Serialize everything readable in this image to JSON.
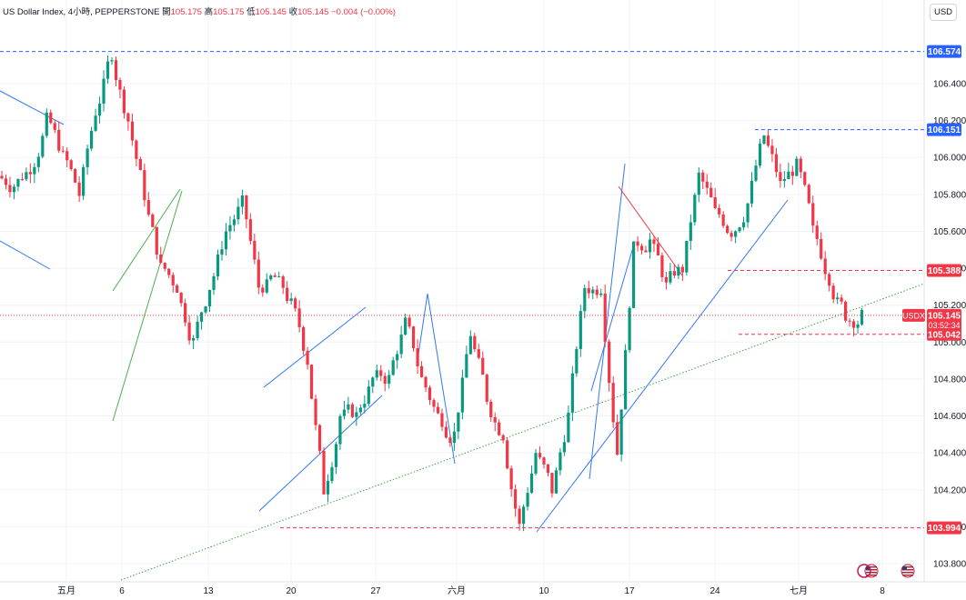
{
  "header": {
    "symbol": "US Dollar Index, 4小時, PEPPERSTONE",
    "open_label": "開",
    "open": "105.175",
    "high_label": "高",
    "high": "105.175",
    "low_label": "低",
    "low": "105.145",
    "close_label": "收",
    "close": "105.145",
    "change": "−0.004 (−0.00%)"
  },
  "currency_button": "USD",
  "y_axis": {
    "min": 103.7,
    "max": 106.7,
    "ticks": [
      "106.400",
      "106.200",
      "106.000",
      "105.800",
      "105.600",
      "105.400",
      "105.200",
      "105.000",
      "104.800",
      "104.600",
      "104.400",
      "104.200",
      "104.000",
      "103.800"
    ]
  },
  "x_axis": {
    "labels": [
      "五月",
      "6",
      "13",
      "20",
      "27",
      "六月",
      "10",
      "17",
      "24",
      "七月",
      "8"
    ]
  },
  "price_tags": {
    "high_line": "106.574",
    "resistance": "106.151",
    "support_red": "105.388",
    "current": "105.145",
    "countdown": "03:52:34",
    "symbol_badge": "USDX",
    "support_low": "105.042",
    "bottom": "103.994"
  },
  "colors": {
    "up": "#089981",
    "down": "#f23645",
    "blue": "#2962ff",
    "trend_blue": "#3179f5",
    "green_channel": "#4caf50"
  },
  "chart_data": {
    "type": "candlestick",
    "instrument": "US Dollar Index",
    "timeframe": "4小時",
    "source": "PEPPERSTONE",
    "key_levels": [
      106.574,
      106.151,
      105.388,
      105.145,
      105.042,
      103.994
    ],
    "ylim": [
      103.7,
      106.7
    ],
    "path_points": [
      [
        105.9,
        105.85
      ],
      [
        105.7,
        105.95
      ],
      [
        106.15,
        106.2
      ],
      [
        105.9,
        106.0
      ],
      [
        105.7,
        105.8
      ],
      [
        106.1,
        106.25
      ],
      [
        106.5,
        106.57
      ],
      [
        106.4,
        106.2
      ],
      [
        106.0,
        105.8
      ],
      [
        105.9,
        105.4
      ],
      [
        105.2,
        105.3
      ],
      [
        105.1,
        105.0
      ],
      [
        105.2,
        105.3
      ],
      [
        105.5,
        105.6
      ],
      [
        105.7,
        105.75
      ],
      [
        105.5,
        105.3
      ],
      [
        105.3,
        105.35
      ],
      [
        105.2,
        105.2
      ],
      [
        105.1,
        104.9
      ],
      [
        104.7,
        104.2
      ],
      [
        104.4,
        104.6
      ],
      [
        104.7,
        104.6
      ],
      [
        104.7,
        104.8
      ],
      [
        104.9,
        104.8
      ],
      [
        105.0,
        105.1
      ],
      [
        104.8,
        104.8
      ],
      [
        104.6,
        104.6
      ],
      [
        104.4,
        104.5
      ],
      [
        105.1,
        105.05
      ],
      [
        104.8,
        104.7
      ],
      [
        104.6,
        104.5
      ],
      [
        104.1,
        104.0
      ],
      [
        104.2,
        104.4
      ],
      [
        104.3,
        104.2
      ],
      [
        104.0,
        104.6
      ],
      [
        104.95,
        105.3
      ],
      [
        105.2,
        105.3
      ],
      [
        105.0,
        104.4
      ],
      [
        104.8,
        105.5
      ],
      [
        105.6,
        105.55
      ],
      [
        105.4,
        105.3
      ],
      [
        105.25,
        105.4
      ],
      [
        105.6,
        105.9
      ],
      [
        105.7,
        105.7
      ],
      [
        105.5,
        105.6
      ],
      [
        105.65,
        105.75
      ],
      [
        106.0,
        106.12
      ],
      [
        106.0,
        105.85
      ],
      [
        105.7,
        105.95
      ],
      [
        105.75,
        105.6
      ],
      [
        105.3,
        105.35
      ],
      [
        105.25,
        105.15
      ],
      [
        105.1,
        105.14
      ]
    ]
  }
}
